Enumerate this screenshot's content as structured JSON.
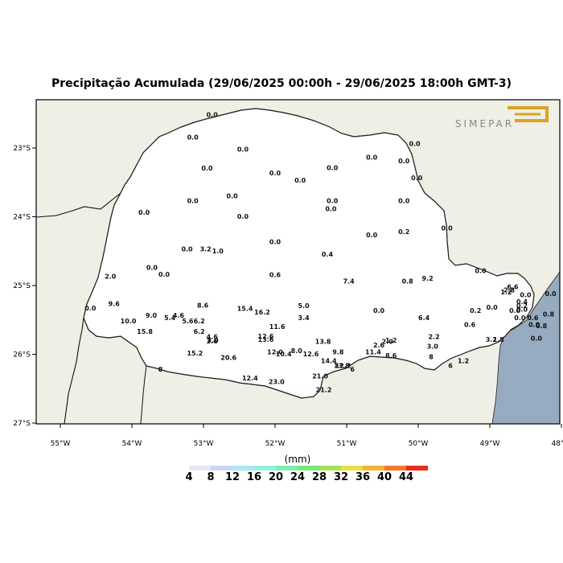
{
  "title": "Precipitação Acumulada (29/06/2025 00:00h - 29/06/2025 18:00h GMT-3)",
  "logo_text": "SIMEPAR",
  "axes": {
    "x_ticks": [
      "55°W",
      "54°W",
      "53°W",
      "52°W",
      "51°W",
      "50°W",
      "49°W",
      "48°W"
    ],
    "y_ticks": [
      "23°S",
      "24°S",
      "25°S",
      "26°S",
      "27°S"
    ]
  },
  "colorbar": {
    "unit": "(mm)",
    "labels": [
      "4",
      "8",
      "12",
      "16",
      "20",
      "24",
      "28",
      "32",
      "36",
      "40",
      "44"
    ],
    "colors": [
      "#ffffff",
      "#e6e6fa",
      "#c9d7f7",
      "#aee6f2",
      "#93efe0",
      "#7ceeb2",
      "#7ce67a",
      "#a6e25a",
      "#e8e046",
      "#f2b43a",
      "#f27a2a",
      "#ee2a1a"
    ]
  },
  "colors": {
    "ocean": "#97abc0",
    "land": "#efefe6",
    "state": "#ffffff"
  },
  "values": [
    {
      "lon": -52.88,
      "lat": -22.55,
      "v": "0.0"
    },
    {
      "lon": -53.15,
      "lat": -22.88,
      "v": "0.0"
    },
    {
      "lon": -52.45,
      "lat": -23.05,
      "v": "0.0"
    },
    {
      "lon": -52.95,
      "lat": -23.33,
      "v": "0.0"
    },
    {
      "lon": -52.0,
      "lat": -23.4,
      "v": "0.0"
    },
    {
      "lon": -51.65,
      "lat": -23.5,
      "v": "0.0"
    },
    {
      "lon": -51.2,
      "lat": -23.32,
      "v": "0.0"
    },
    {
      "lon": -50.65,
      "lat": -23.17,
      "v": "0.0"
    },
    {
      "lon": -50.2,
      "lat": -23.22,
      "v": "0.0"
    },
    {
      "lon": -50.05,
      "lat": -22.97,
      "v": "0.0"
    },
    {
      "lon": -50.02,
      "lat": -23.47,
      "v": "0.0"
    },
    {
      "lon": -53.15,
      "lat": -23.8,
      "v": "0.0"
    },
    {
      "lon": -52.6,
      "lat": -23.73,
      "v": "0.0"
    },
    {
      "lon": -53.83,
      "lat": -23.97,
      "v": "0.0"
    },
    {
      "lon": -51.2,
      "lat": -23.8,
      "v": "0.0"
    },
    {
      "lon": -51.22,
      "lat": -23.92,
      "v": "0.0"
    },
    {
      "lon": -50.2,
      "lat": -23.8,
      "v": "0.0"
    },
    {
      "lon": -52.45,
      "lat": -24.03,
      "v": "0.0"
    },
    {
      "lon": -50.65,
      "lat": -24.3,
      "v": "0.0"
    },
    {
      "lon": -50.2,
      "lat": -24.25,
      "v": "0.2"
    },
    {
      "lon": -49.6,
      "lat": -24.2,
      "v": "0.0"
    },
    {
      "lon": -52.0,
      "lat": -24.4,
      "v": "0.0"
    },
    {
      "lon": -53.23,
      "lat": -24.5,
      "v": "0.0"
    },
    {
      "lon": -52.97,
      "lat": -24.5,
      "v": "3.2"
    },
    {
      "lon": -52.8,
      "lat": -24.53,
      "v": "1.0"
    },
    {
      "lon": -51.27,
      "lat": -24.58,
      "v": "0.4"
    },
    {
      "lon": -53.72,
      "lat": -24.77,
      "v": "0.0"
    },
    {
      "lon": -53.55,
      "lat": -24.87,
      "v": "0.0"
    },
    {
      "lon": -54.3,
      "lat": -24.9,
      "v": "2.0"
    },
    {
      "lon": -52.0,
      "lat": -24.88,
      "v": "0.6"
    },
    {
      "lon": -49.13,
      "lat": -24.82,
      "v": "0.0"
    },
    {
      "lon": -50.97,
      "lat": -24.97,
      "v": "7.4"
    },
    {
      "lon": -50.15,
      "lat": -24.97,
      "v": "0.8"
    },
    {
      "lon": -49.87,
      "lat": -24.93,
      "v": "9.2"
    },
    {
      "lon": -54.58,
      "lat": -25.36,
      "v": "0.0"
    },
    {
      "lon": -54.25,
      "lat": -25.3,
      "v": "9.6"
    },
    {
      "lon": -53.01,
      "lat": -25.32,
      "v": "8.6"
    },
    {
      "lon": -52.42,
      "lat": -25.37,
      "v": "15.4"
    },
    {
      "lon": -52.18,
      "lat": -25.42,
      "v": "16.2"
    },
    {
      "lon": -51.6,
      "lat": -25.33,
      "v": "5.0"
    },
    {
      "lon": -53.73,
      "lat": -25.47,
      "v": "9.0"
    },
    {
      "lon": -53.47,
      "lat": -25.5,
      "v": "5.4"
    },
    {
      "lon": -53.35,
      "lat": -25.47,
      "v": "4.6"
    },
    {
      "lon": -53.22,
      "lat": -25.55,
      "v": "5.6"
    },
    {
      "lon": -53.06,
      "lat": -25.55,
      "v": "6.2"
    },
    {
      "lon": -51.6,
      "lat": -25.5,
      "v": "3.4"
    },
    {
      "lon": -50.55,
      "lat": -25.4,
      "v": "0.0"
    },
    {
      "lon": -49.92,
      "lat": -25.5,
      "v": "6.4"
    },
    {
      "lon": -49.2,
      "lat": -25.4,
      "v": "0.2"
    },
    {
      "lon": -48.97,
      "lat": -25.35,
      "v": "0.0"
    },
    {
      "lon": -54.05,
      "lat": -25.55,
      "v": "10.0"
    },
    {
      "lon": -53.82,
      "lat": -25.7,
      "v": "15.8"
    },
    {
      "lon": -53.06,
      "lat": -25.7,
      "v": "6.2"
    },
    {
      "lon": -52.88,
      "lat": -25.78,
      "v": "4.6"
    },
    {
      "lon": -52.87,
      "lat": -25.83,
      "v": "3.0"
    },
    {
      "lon": -52.88,
      "lat": -25.84,
      "v": "3.6"
    },
    {
      "lon": -52.13,
      "lat": -25.77,
      "v": "12.6"
    },
    {
      "lon": -52.13,
      "lat": -25.82,
      "v": "13.6"
    },
    {
      "lon": -51.97,
      "lat": -25.63,
      "v": "11.6"
    },
    {
      "lon": -51.33,
      "lat": -25.85,
      "v": "13.8"
    },
    {
      "lon": -49.28,
      "lat": -25.6,
      "v": "0.6"
    },
    {
      "lon": -48.98,
      "lat": -25.82,
      "v": "3.2"
    },
    {
      "lon": -48.88,
      "lat": -25.82,
      "v": "1.8"
    },
    {
      "lon": -49.78,
      "lat": -25.78,
      "v": "2.2"
    },
    {
      "lon": -50.55,
      "lat": -25.9,
      "v": "2.6"
    },
    {
      "lon": -50.38,
      "lat": -25.83,
      "v": "1.2"
    },
    {
      "lon": -50.43,
      "lat": -25.85,
      "v": "2.0"
    },
    {
      "lon": -49.8,
      "lat": -25.92,
      "v": "3.0"
    },
    {
      "lon": -53.12,
      "lat": -26.02,
      "v": "15.2"
    },
    {
      "lon": -52.65,
      "lat": -26.08,
      "v": "20.6"
    },
    {
      "lon": -52.0,
      "lat": -26.0,
      "v": "12.0"
    },
    {
      "lon": -51.88,
      "lat": -26.03,
      "v": "10.4"
    },
    {
      "lon": -51.7,
      "lat": -25.98,
      "v": "8.0"
    },
    {
      "lon": -51.5,
      "lat": -26.03,
      "v": "12.6"
    },
    {
      "lon": -51.12,
      "lat": -26.0,
      "v": "9.8"
    },
    {
      "lon": -50.63,
      "lat": -26.0,
      "v": "11.4"
    },
    {
      "lon": -50.38,
      "lat": -26.05,
      "v": "8.6"
    },
    {
      "lon": -49.82,
      "lat": -26.07,
      "v": "8"
    },
    {
      "lon": -51.25,
      "lat": -26.13,
      "v": "14.4"
    },
    {
      "lon": -51.07,
      "lat": -26.2,
      "v": "13.8"
    },
    {
      "lon": -51.05,
      "lat": -26.2,
      "v": "12.2"
    },
    {
      "lon": -50.92,
      "lat": -26.25,
      "v": "6"
    },
    {
      "lon": -49.55,
      "lat": -26.2,
      "v": "6"
    },
    {
      "lon": -49.37,
      "lat": -26.13,
      "v": "1.2"
    },
    {
      "lon": -53.6,
      "lat": -26.25,
      "v": "8"
    },
    {
      "lon": -52.35,
      "lat": -26.38,
      "v": "12.4"
    },
    {
      "lon": -51.98,
      "lat": -26.43,
      "v": "23.0"
    },
    {
      "lon": -51.37,
      "lat": -26.35,
      "v": "21.0"
    },
    {
      "lon": -51.32,
      "lat": -26.55,
      "v": "21.2"
    },
    {
      "lon": -48.68,
      "lat": -25.05,
      "v": "6.6"
    },
    {
      "lon": -48.73,
      "lat": -25.1,
      "v": "2.8"
    },
    {
      "lon": -48.77,
      "lat": -25.13,
      "v": "1.2"
    },
    {
      "lon": -48.5,
      "lat": -25.17,
      "v": "0.0"
    },
    {
      "lon": -48.55,
      "lat": -25.27,
      "v": "0.4"
    },
    {
      "lon": -48.65,
      "lat": -25.4,
      "v": "0.0"
    },
    {
      "lon": -48.58,
      "lat": -25.5,
      "v": "0.0"
    },
    {
      "lon": -48.55,
      "lat": -25.38,
      "v": "0.0"
    },
    {
      "lon": -48.55,
      "lat": -25.33,
      "v": "0.2"
    },
    {
      "lon": -48.4,
      "lat": -25.5,
      "v": "0.6"
    },
    {
      "lon": -48.38,
      "lat": -25.6,
      "v": "0.0"
    },
    {
      "lon": -48.35,
      "lat": -25.8,
      "v": "0.0"
    },
    {
      "lon": -48.15,
      "lat": -25.15,
      "v": "0.0"
    },
    {
      "lon": -48.18,
      "lat": -25.45,
      "v": "0.8"
    },
    {
      "lon": -48.28,
      "lat": -25.62,
      "v": "0.8"
    }
  ]
}
